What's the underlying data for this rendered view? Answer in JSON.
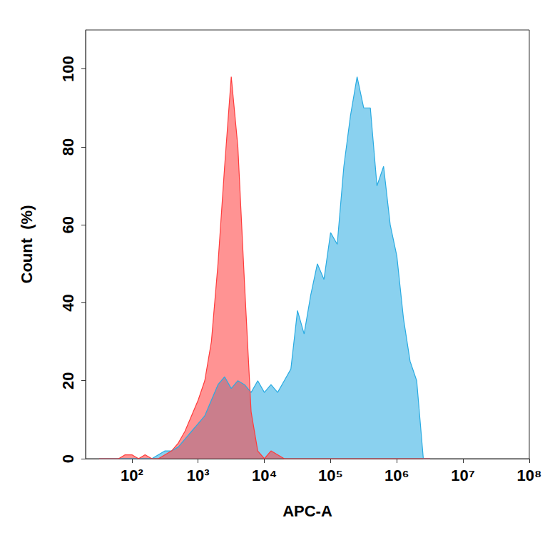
{
  "chart_data": {
    "type": "area",
    "x_label": "APC-A",
    "y_label": "Count  (%)",
    "log": "x",
    "grid": false,
    "xlim": [
      20,
      100000000
    ],
    "xticks": [
      {
        "value": 100,
        "label": "10²"
      },
      {
        "value": 1000,
        "label": "10³"
      },
      {
        "value": 10000,
        "label": "10⁴"
      },
      {
        "value": 100000,
        "label": "10⁵"
      },
      {
        "value": 1000000,
        "label": "10⁶"
      },
      {
        "value": 10000000,
        "label": "10⁷"
      },
      {
        "value": 100000000,
        "label": "10⁸"
      }
    ],
    "ylim": [
      0,
      110
    ],
    "yticks": [
      0,
      20,
      40,
      60,
      80,
      100
    ],
    "x": [
      32,
      40,
      50,
      63,
      79,
      100,
      126,
      158,
      200,
      251,
      316,
      398,
      501,
      631,
      794,
      1000,
      1259,
      1585,
      1995,
      2512,
      3162,
      3981,
      5012,
      6310,
      7943,
      10000,
      12589,
      15849,
      19953,
      25119,
      31623,
      39811,
      50119,
      63096,
      79433,
      100000,
      125893,
      158489,
      199526,
      251189,
      316228,
      398107,
      501187,
      630957,
      794328,
      1000000,
      1258925,
      1584893,
      1995262,
      2511886,
      3162278
    ],
    "series": [
      {
        "color": "#29abe2",
        "values": [
          0,
          0,
          0,
          0,
          0,
          0,
          0,
          0,
          0,
          1,
          2,
          2,
          3,
          5,
          7,
          9,
          11,
          15,
          19,
          21,
          18,
          20,
          19,
          17,
          20,
          17,
          19,
          17,
          20,
          23,
          38,
          32,
          42,
          50,
          46,
          58,
          55,
          75,
          88,
          98,
          90,
          90,
          70,
          75,
          60,
          52,
          36,
          25,
          20,
          0,
          0
        ]
      },
      {
        "color": "#ff3b3b",
        "values": [
          0,
          0,
          0,
          0,
          1,
          1,
          0,
          1,
          0,
          0,
          1,
          2,
          4,
          7,
          11,
          15,
          20,
          30,
          50,
          75,
          98,
          80,
          45,
          12,
          2,
          0,
          2,
          1,
          0,
          0,
          0,
          0,
          0,
          0,
          0,
          0,
          0,
          0,
          0,
          0,
          0,
          0,
          0,
          0,
          0,
          0,
          0,
          0,
          0,
          0,
          0
        ]
      }
    ]
  }
}
